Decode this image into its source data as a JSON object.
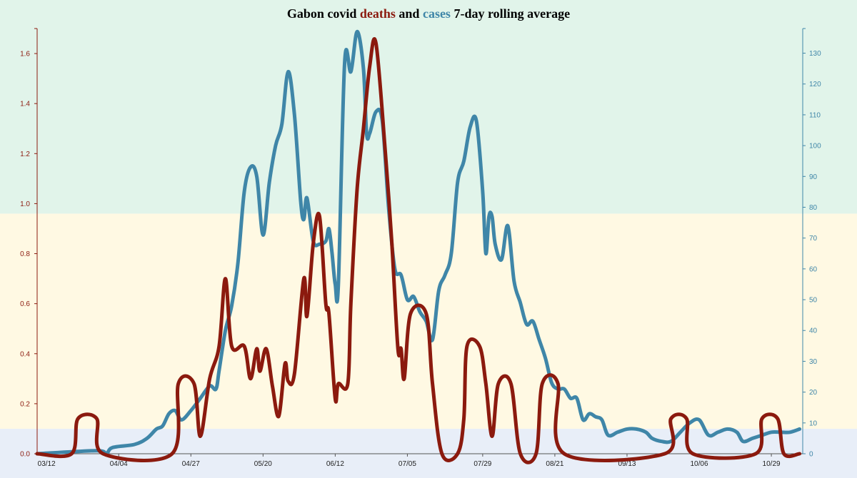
{
  "chart_data": {
    "type": "line",
    "title": {
      "prefix": "Gabon covid ",
      "deaths_word": "deaths",
      "middle": " and ",
      "cases_word": "cases",
      "suffix": " 7-day rolling average"
    },
    "x_ticks": [
      "03/12",
      "04/04",
      "04/27",
      "05/20",
      "06/12",
      "07/05",
      "07/29",
      "08/21",
      "09/13",
      "10/06",
      "10/29"
    ],
    "x_axis": {
      "start": "2020-03-09",
      "end": "2020-11-08"
    },
    "y_left": {
      "range": [
        0,
        1.7
      ],
      "ticks": [
        "0.0",
        "0.2",
        "0.4",
        "0.6",
        "0.8",
        "1.0",
        "1.2",
        "1.4",
        "1.6"
      ]
    },
    "y_right": {
      "range": [
        0,
        138
      ],
      "ticks": [
        "0",
        "10",
        "20",
        "30",
        "40",
        "50",
        "60",
        "70",
        "80",
        "90",
        "100",
        "110",
        "120",
        "130"
      ]
    },
    "bands": [
      {
        "from": 0,
        "to": 0.1,
        "color": "#e8eef8"
      },
      {
        "from": 0.1,
        "to": 0.96,
        "color": "#fff9e3"
      },
      {
        "from": 0.96,
        "to": 1.7,
        "color": "#e1f4ea"
      }
    ],
    "series": [
      {
        "name": "deaths",
        "color": "#8b1a0e",
        "axis": "left",
        "points": [
          [
            "2020-03-09",
            0
          ],
          [
            "2020-03-20",
            0
          ],
          [
            "2020-03-22",
            0.14
          ],
          [
            "2020-03-28",
            0.14
          ],
          [
            "2020-03-30",
            0
          ],
          [
            "2020-04-21",
            0
          ],
          [
            "2020-04-23",
            0.28
          ],
          [
            "2020-04-28",
            0.28
          ],
          [
            "2020-04-30",
            0.07
          ],
          [
            "2020-05-03",
            0.3
          ],
          [
            "2020-05-06",
            0.43
          ],
          [
            "2020-05-08",
            0.7
          ],
          [
            "2020-05-10",
            0.43
          ],
          [
            "2020-05-14",
            0.43
          ],
          [
            "2020-05-16",
            0.3
          ],
          [
            "2020-05-18",
            0.42
          ],
          [
            "2020-05-19",
            0.33
          ],
          [
            "2020-05-21",
            0.42
          ],
          [
            "2020-05-23",
            0.27
          ],
          [
            "2020-05-25",
            0.15
          ],
          [
            "2020-05-27",
            0.36
          ],
          [
            "2020-05-28",
            0.29
          ],
          [
            "2020-05-30",
            0.32
          ],
          [
            "2020-06-02",
            0.7
          ],
          [
            "2020-06-03",
            0.55
          ],
          [
            "2020-06-05",
            0.84
          ],
          [
            "2020-06-07",
            0.95
          ],
          [
            "2020-06-09",
            0.6
          ],
          [
            "2020-06-10",
            0.56
          ],
          [
            "2020-06-12",
            0.22
          ],
          [
            "2020-06-13",
            0.28
          ],
          [
            "2020-06-16",
            0.28
          ],
          [
            "2020-06-17",
            0.6
          ],
          [
            "2020-06-19",
            1.06
          ],
          [
            "2020-06-21",
            1.3
          ],
          [
            "2020-06-23",
            1.55
          ],
          [
            "2020-06-25",
            1.64
          ],
          [
            "2020-06-28",
            1.2
          ],
          [
            "2020-06-30",
            0.85
          ],
          [
            "2020-07-02",
            0.42
          ],
          [
            "2020-07-03",
            0.42
          ],
          [
            "2020-07-04",
            0.3
          ],
          [
            "2020-07-06",
            0.56
          ],
          [
            "2020-07-11",
            0.56
          ],
          [
            "2020-07-13",
            0.28
          ],
          [
            "2020-07-16",
            0
          ],
          [
            "2020-07-21",
            0
          ],
          [
            "2020-07-23",
            0.14
          ],
          [
            "2020-07-24",
            0.43
          ],
          [
            "2020-07-28",
            0.43
          ],
          [
            "2020-07-30",
            0.28
          ],
          [
            "2020-08-01",
            0.07
          ],
          [
            "2020-08-03",
            0.28
          ],
          [
            "2020-08-07",
            0.28
          ],
          [
            "2020-08-10",
            0
          ],
          [
            "2020-08-15",
            0
          ],
          [
            "2020-08-17",
            0.28
          ],
          [
            "2020-08-22",
            0.28
          ],
          [
            "2020-08-24",
            0
          ],
          [
            "2020-09-25",
            0
          ],
          [
            "2020-09-27",
            0.14
          ],
          [
            "2020-10-02",
            0.14
          ],
          [
            "2020-10-04",
            0
          ],
          [
            "2020-10-24",
            0
          ],
          [
            "2020-10-26",
            0.14
          ],
          [
            "2020-10-31",
            0.14
          ],
          [
            "2020-11-02",
            0
          ],
          [
            "2020-11-07",
            0
          ]
        ]
      },
      {
        "name": "cases",
        "color": "#3f86a8",
        "axis": "right",
        "points": [
          [
            "2020-03-09",
            0
          ],
          [
            "2020-03-28",
            1
          ],
          [
            "2020-03-31",
            0
          ],
          [
            "2020-04-02",
            2
          ],
          [
            "2020-04-09",
            3
          ],
          [
            "2020-04-13",
            5
          ],
          [
            "2020-04-16",
            8
          ],
          [
            "2020-04-18",
            9
          ],
          [
            "2020-04-20",
            13
          ],
          [
            "2020-04-22",
            14
          ],
          [
            "2020-04-24",
            11
          ],
          [
            "2020-04-27",
            14
          ],
          [
            "2020-04-30",
            18
          ],
          [
            "2020-05-03",
            22
          ],
          [
            "2020-05-05",
            21
          ],
          [
            "2020-05-06",
            27
          ],
          [
            "2020-05-08",
            40
          ],
          [
            "2020-05-10",
            48
          ],
          [
            "2020-05-12",
            62
          ],
          [
            "2020-05-14",
            85
          ],
          [
            "2020-05-16",
            93
          ],
          [
            "2020-05-18",
            90
          ],
          [
            "2020-05-20",
            71
          ],
          [
            "2020-05-22",
            88
          ],
          [
            "2020-05-24",
            100
          ],
          [
            "2020-05-26",
            107
          ],
          [
            "2020-05-28",
            124
          ],
          [
            "2020-05-30",
            110
          ],
          [
            "2020-06-01",
            82
          ],
          [
            "2020-06-02",
            76
          ],
          [
            "2020-06-03",
            83
          ],
          [
            "2020-06-05",
            69
          ],
          [
            "2020-06-07",
            68
          ],
          [
            "2020-06-09",
            69
          ],
          [
            "2020-06-10",
            73
          ],
          [
            "2020-06-11",
            65
          ],
          [
            "2020-06-12",
            55
          ],
          [
            "2020-06-13",
            55
          ],
          [
            "2020-06-15",
            127
          ],
          [
            "2020-06-17",
            124
          ],
          [
            "2020-06-19",
            137
          ],
          [
            "2020-06-21",
            125
          ],
          [
            "2020-06-22",
            104
          ],
          [
            "2020-06-23",
            104
          ],
          [
            "2020-06-25",
            111
          ],
          [
            "2020-06-27",
            108
          ],
          [
            "2020-06-29",
            80
          ],
          [
            "2020-07-01",
            60
          ],
          [
            "2020-07-03",
            58
          ],
          [
            "2020-07-05",
            50
          ],
          [
            "2020-07-07",
            51
          ],
          [
            "2020-07-09",
            46
          ],
          [
            "2020-07-11",
            43
          ],
          [
            "2020-07-13",
            37
          ],
          [
            "2020-07-15",
            53
          ],
          [
            "2020-07-17",
            58
          ],
          [
            "2020-07-19",
            65
          ],
          [
            "2020-07-21",
            88
          ],
          [
            "2020-07-23",
            95
          ],
          [
            "2020-07-25",
            106
          ],
          [
            "2020-07-27",
            108
          ],
          [
            "2020-07-29",
            85
          ],
          [
            "2020-07-30",
            65
          ],
          [
            "2020-07-31",
            77
          ],
          [
            "2020-08-01",
            77
          ],
          [
            "2020-08-02",
            68
          ],
          [
            "2020-08-04",
            63
          ],
          [
            "2020-08-06",
            74
          ],
          [
            "2020-08-08",
            56
          ],
          [
            "2020-08-10",
            49
          ],
          [
            "2020-08-12",
            42
          ],
          [
            "2020-08-14",
            43
          ],
          [
            "2020-08-16",
            37
          ],
          [
            "2020-08-18",
            31
          ],
          [
            "2020-08-20",
            23
          ],
          [
            "2020-08-22",
            21
          ],
          [
            "2020-08-24",
            21
          ],
          [
            "2020-08-26",
            18
          ],
          [
            "2020-08-28",
            18
          ],
          [
            "2020-08-30",
            11
          ],
          [
            "2020-09-01",
            13
          ],
          [
            "2020-09-03",
            12
          ],
          [
            "2020-09-05",
            11
          ],
          [
            "2020-09-07",
            6
          ],
          [
            "2020-09-10",
            7
          ],
          [
            "2020-09-13",
            8
          ],
          [
            "2020-09-16",
            8
          ],
          [
            "2020-09-19",
            7
          ],
          [
            "2020-09-21",
            5
          ],
          [
            "2020-09-24",
            4
          ],
          [
            "2020-09-27",
            4
          ],
          [
            "2020-09-30",
            7
          ],
          [
            "2020-10-03",
            10
          ],
          [
            "2020-10-06",
            11
          ],
          [
            "2020-10-09",
            6
          ],
          [
            "2020-10-12",
            7
          ],
          [
            "2020-10-15",
            8
          ],
          [
            "2020-10-18",
            7
          ],
          [
            "2020-10-20",
            4
          ],
          [
            "2020-10-23",
            5
          ],
          [
            "2020-10-26",
            6
          ],
          [
            "2020-10-29",
            7
          ],
          [
            "2020-11-01",
            7
          ],
          [
            "2020-11-04",
            7
          ],
          [
            "2020-11-07",
            8
          ]
        ]
      }
    ]
  }
}
